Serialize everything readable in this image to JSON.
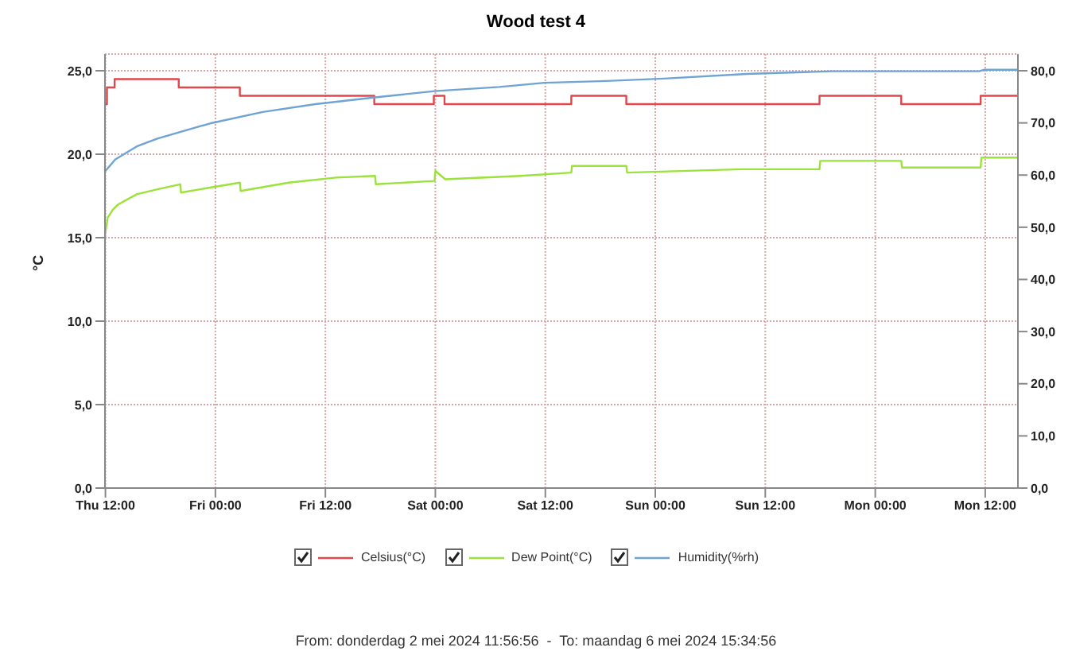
{
  "chart_data": {
    "type": "line",
    "title": "Wood test 4",
    "ylabel": "°C",
    "annotations": [
      "From: donderdag 2 mei 2024 11:56:56  -  To: maandag 6 mei 2024 15:34:56"
    ],
    "xlim": [
      "2024-05-02T11:57",
      "2024-05-06T15:34"
    ],
    "xticks": [
      {
        "value": "2024-05-02T12:00",
        "label": "Thu 12:00"
      },
      {
        "value": "2024-05-03T00:00",
        "label": "Fri 00:00"
      },
      {
        "value": "2024-05-03T12:00",
        "label": "Fri 12:00"
      },
      {
        "value": "2024-05-04T00:00",
        "label": "Sat 00:00"
      },
      {
        "value": "2024-05-04T12:00",
        "label": "Sat 12:00"
      },
      {
        "value": "2024-05-05T00:00",
        "label": "Sun 00:00"
      },
      {
        "value": "2024-05-05T12:00",
        "label": "Sun 12:00"
      },
      {
        "value": "2024-05-06T00:00",
        "label": "Mon 00:00"
      },
      {
        "value": "2024-05-06T12:00",
        "label": "Mon 12:00"
      }
    ],
    "ylim": [
      0,
      26
    ],
    "yticks": [
      {
        "value": 0,
        "label": "0,0"
      },
      {
        "value": 5,
        "label": "5,0"
      },
      {
        "value": 10,
        "label": "10,0"
      },
      {
        "value": 15,
        "label": "15,0"
      },
      {
        "value": 20,
        "label": "20,0"
      },
      {
        "value": 25,
        "label": "25,0"
      }
    ],
    "y2lim": [
      0,
      83.2
    ],
    "y2ticks": [
      {
        "value": 0,
        "label": "0,0"
      },
      {
        "value": 10,
        "label": "10,0"
      },
      {
        "value": 20,
        "label": "20,0"
      },
      {
        "value": 30,
        "label": "30,0"
      },
      {
        "value": 40,
        "label": "40,0"
      },
      {
        "value": 50,
        "label": "50,0"
      },
      {
        "value": 60,
        "label": "60,0"
      },
      {
        "value": 70,
        "label": "70,0"
      },
      {
        "value": 80,
        "label": "80,0"
      }
    ],
    "grid": true,
    "legend": "bottom",
    "marker": "none",
    "series": [
      {
        "name": "Celsius(°C)",
        "type": "step",
        "color": "#e0474c",
        "x": [
          "2024-05-02T11:57",
          "2024-05-02T12:10",
          "2024-05-02T13:00",
          "2024-05-02T20:00",
          "2024-05-03T02:40",
          "2024-05-03T17:20",
          "2024-05-03T23:50",
          "2024-05-04T01:00",
          "2024-05-04T14:50",
          "2024-05-04T20:50",
          "2024-05-05T17:55",
          "2024-05-06T02:50",
          "2024-05-06T11:30",
          "2024-05-06T15:34"
        ],
        "values": [
          23.0,
          24.0,
          24.5,
          24.0,
          23.5,
          23.0,
          23.5,
          23.0,
          23.5,
          23.0,
          23.5,
          23.0,
          23.5,
          23.5
        ]
      },
      {
        "name": "Dew Point(°C)",
        "type": "line",
        "color": "#9be23a",
        "x": [
          "2024-05-02T11:57",
          "2024-05-02T12:15",
          "2024-05-02T12:50",
          "2024-05-02T13:25",
          "2024-05-02T15:25",
          "2024-05-02T17:40",
          "2024-05-02T20:10",
          "2024-05-02T20:15",
          "2024-05-02T23:25",
          "2024-05-03T02:40",
          "2024-05-03T02:45",
          "2024-05-03T08:00",
          "2024-05-03T13:10",
          "2024-05-03T17:25",
          "2024-05-03T17:30",
          "2024-05-03T23:55",
          "2024-05-04T00:00",
          "2024-05-04T01:05",
          "2024-05-04T09:20",
          "2024-05-04T14:50",
          "2024-05-04T14:55",
          "2024-05-04T20:50",
          "2024-05-04T20:55",
          "2024-05-05T09:30",
          "2024-05-05T17:55",
          "2024-05-05T18:00",
          "2024-05-06T02:50",
          "2024-05-06T02:55",
          "2024-05-06T11:30",
          "2024-05-06T11:35",
          "2024-05-06T15:34"
        ],
        "values": [
          15.1,
          16.2,
          16.7,
          17.0,
          17.6,
          17.9,
          18.2,
          17.7,
          18.0,
          18.3,
          17.8,
          18.3,
          18.6,
          18.7,
          18.2,
          18.4,
          19.0,
          18.5,
          18.7,
          18.9,
          19.3,
          19.3,
          18.9,
          19.1,
          19.1,
          19.6,
          19.6,
          19.2,
          19.2,
          19.8,
          19.8
        ]
      },
      {
        "name": "Humidity(%rh)",
        "type": "line",
        "axis": "y2",
        "color": "#6fa3d4",
        "x": [
          "2024-05-02T11:57",
          "2024-05-02T13:05",
          "2024-05-02T15:25",
          "2024-05-02T17:40",
          "2024-05-02T23:25",
          "2024-05-03T05:10",
          "2024-05-03T10:55",
          "2024-05-03T17:25",
          "2024-05-03T23:55",
          "2024-05-04T07:00",
          "2024-05-04T11:55",
          "2024-05-04T18:00",
          "2024-05-05T00:55",
          "2024-05-05T10:00",
          "2024-05-05T19:15",
          "2024-05-06T11:20",
          "2024-05-06T11:55",
          "2024-05-06T15:34"
        ],
        "values": [
          60.7,
          63.0,
          65.5,
          67.0,
          69.9,
          72.1,
          73.6,
          74.9,
          76.1,
          76.9,
          77.7,
          78.0,
          78.5,
          79.4,
          79.9,
          79.9,
          80.2,
          80.2
        ]
      }
    ]
  }
}
